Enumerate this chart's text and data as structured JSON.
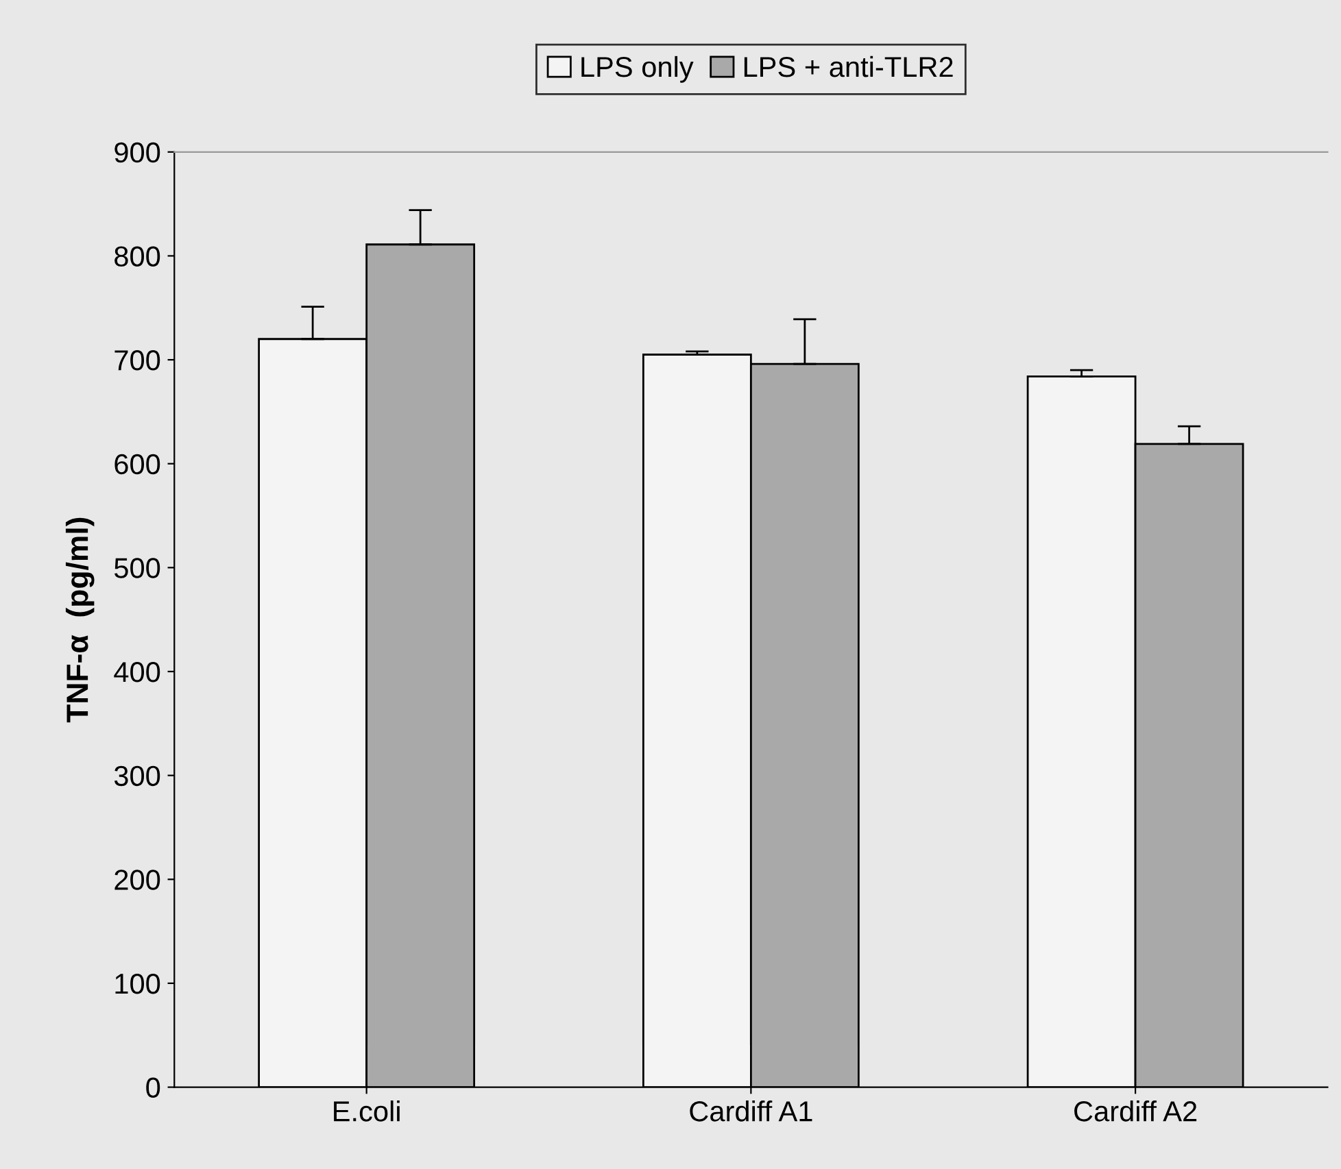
{
  "chart_data": {
    "type": "bar",
    "ylabel": "TNF-α  (pg/ml)",
    "categories": [
      "E.coli",
      "Cardiff A1",
      "Cardiff A2"
    ],
    "series": [
      {
        "name": "LPS only",
        "color": "#f4f4f4",
        "values": [
          720,
          705,
          684
        ],
        "errors": [
          31,
          3,
          6
        ]
      },
      {
        "name": "LPS + anti-TLR2",
        "color": "#a9a9a9",
        "values": [
          811,
          696,
          619
        ],
        "errors": [
          33,
          43,
          17
        ]
      }
    ],
    "ylim": [
      0,
      900
    ],
    "yticks": [
      0,
      100,
      200,
      300,
      400,
      500,
      600,
      700,
      800,
      900
    ],
    "grid": false,
    "legend": "top"
  }
}
